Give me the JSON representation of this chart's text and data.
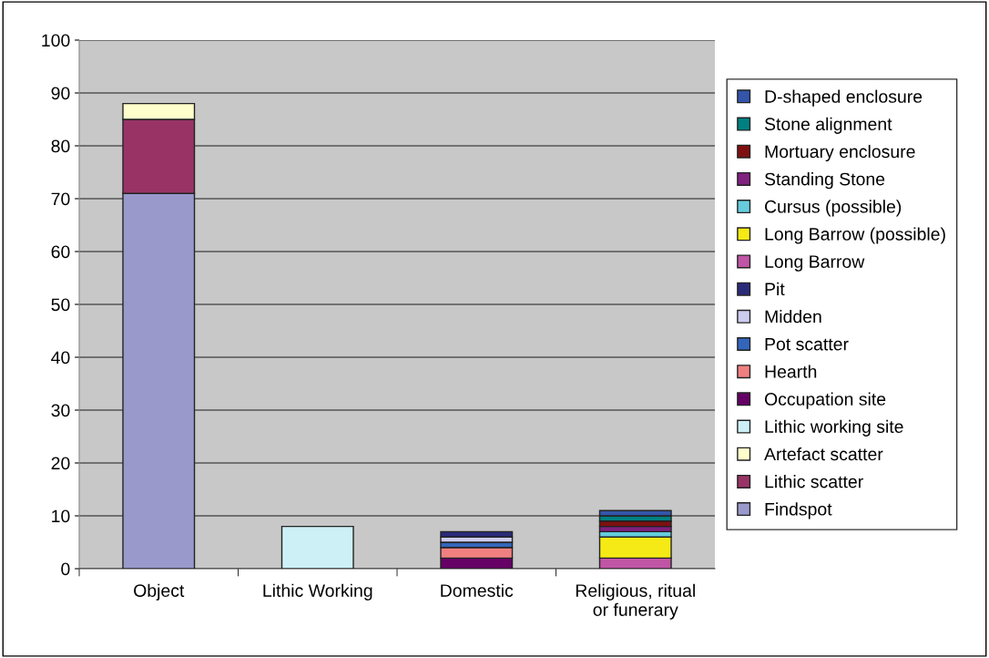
{
  "chart_data": {
    "type": "bar",
    "stacked": true,
    "categories": [
      "Object",
      "Lithic Working",
      "Domestic",
      "Religious, ritual\nor funerary"
    ],
    "ylim": [
      0,
      100
    ],
    "yticks": [
      0,
      10,
      20,
      30,
      40,
      50,
      60,
      70,
      80,
      90,
      100
    ],
    "grid": "y",
    "legend": "right",
    "series": [
      {
        "name": "Findspot",
        "color": "#9999cc",
        "values": [
          71,
          null,
          null,
          null
        ]
      },
      {
        "name": "Lithic scatter",
        "color": "#993366",
        "values": [
          14,
          null,
          null,
          null
        ]
      },
      {
        "name": "Artefact scatter",
        "color": "#ffffcc",
        "values": [
          3,
          null,
          null,
          null
        ]
      },
      {
        "name": "Lithic working site",
        "color": "#ccf0f5",
        "values": [
          null,
          8,
          null,
          null
        ]
      },
      {
        "name": "Occupation site",
        "color": "#660066",
        "values": [
          null,
          null,
          2,
          null
        ]
      },
      {
        "name": "Hearth",
        "color": "#f08080",
        "values": [
          null,
          null,
          2,
          null
        ]
      },
      {
        "name": "Pot scatter",
        "color": "#3366bb",
        "values": [
          null,
          null,
          1,
          null
        ]
      },
      {
        "name": "Midden",
        "color": "#ccccee",
        "values": [
          null,
          null,
          1,
          null
        ]
      },
      {
        "name": "Pit",
        "color": "#2a2a7a",
        "values": [
          null,
          null,
          1,
          null
        ]
      },
      {
        "name": "Long Barrow",
        "color": "#c055a5",
        "values": [
          null,
          null,
          null,
          2
        ]
      },
      {
        "name": "Long Barrow (possible)",
        "color": "#f5ea15",
        "values": [
          null,
          null,
          null,
          4
        ]
      },
      {
        "name": "Cursus (possible)",
        "color": "#66ccdd",
        "values": [
          null,
          null,
          null,
          1
        ]
      },
      {
        "name": "Standing Stone",
        "color": "#802080",
        "values": [
          null,
          null,
          null,
          1
        ]
      },
      {
        "name": "Mortuary enclosure",
        "color": "#801010",
        "values": [
          null,
          null,
          null,
          1
        ]
      },
      {
        "name": "Stone alignment",
        "color": "#008080",
        "values": [
          null,
          null,
          null,
          1
        ]
      },
      {
        "name": "D-shaped enclosure",
        "color": "#3355aa",
        "values": [
          null,
          null,
          null,
          1
        ]
      }
    ]
  }
}
